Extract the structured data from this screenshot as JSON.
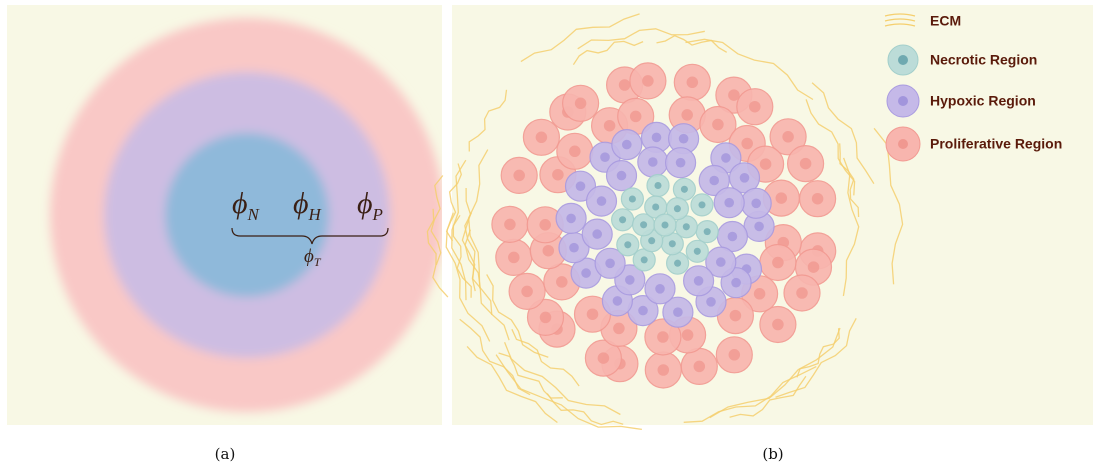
{
  "panel_a": {
    "labels": [
      {
        "symbol": "ϕ",
        "subscript": "N"
      },
      {
        "symbol": "ϕ",
        "subscript": "H"
      },
      {
        "symbol": "ϕ",
        "subscript": "P"
      }
    ],
    "total": {
      "symbol": "ϕ",
      "subscript": "T"
    },
    "caption": "(a)"
  },
  "panel_b": {
    "legend": [
      "ECM",
      "Necrotic Region",
      "Hypoxic Region",
      "Proliferative Region"
    ],
    "caption": "(b)"
  }
}
